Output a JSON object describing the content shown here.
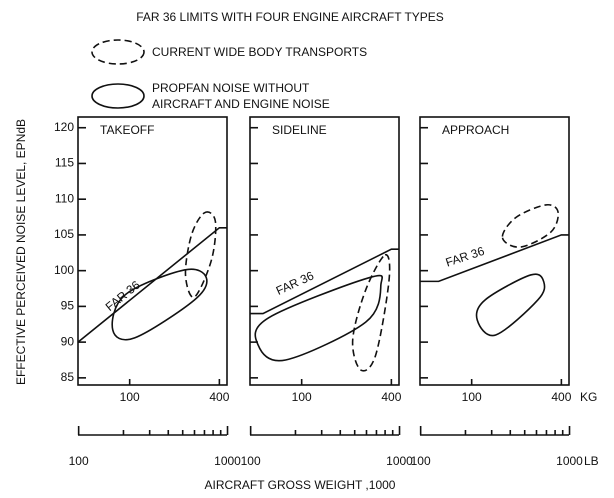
{
  "chart_data": {
    "type": "line",
    "title": "FAR 36 LIMITS WITH FOUR ENGINE AIRCRAFT TYPES",
    "ylabel": "EFFECTIVE PERCEIVED NOISE LEVEL, EPNdB",
    "xlabel": "AIRCRAFT GROSS WEIGHT ,1000",
    "x_unit": "KG",
    "x2_unit": "LB",
    "xscale": "log",
    "xlim": [
      45,
      450
    ],
    "xticks": [
      100,
      400
    ],
    "x2lim": [
      99,
      992
    ],
    "x2ticks": [
      100,
      1000
    ],
    "x2minorticks": [
      200,
      300,
      400,
      500,
      600,
      700,
      800,
      900
    ],
    "ylim": [
      84,
      121.5
    ],
    "yticks": [
      85,
      90,
      95,
      100,
      105,
      110,
      115,
      120
    ],
    "legend": [
      {
        "name": "CURRENT WIDE BODY TRANSPORTS",
        "style": "dashed"
      },
      {
        "name": "PROPFAN NOISE WITHOUT AIRCRAFT AND ENGINE NOISE",
        "style": "solid"
      }
    ],
    "panels": [
      {
        "title": "TAKEOFF",
        "series": [
          {
            "name": "FAR 36",
            "x": [
              45,
              400,
              450
            ],
            "values": [
              90,
              106,
              106
            ]
          }
        ],
        "regions": [
          {
            "style": "solid",
            "x": [
              77,
              108,
              272,
              327,
              233,
              93
            ],
            "y": [
              91.7,
              90.6,
              95.9,
              99,
              100.1,
              96.6
            ]
          },
          {
            "style": "dashed",
            "x": [
              318,
              376,
              354,
              272,
              237,
              260
            ],
            "y": [
              108.1,
              106.9,
              101.5,
              96.3,
              99.4,
              105
            ]
          }
        ]
      },
      {
        "title": "SIDELINE",
        "series": [
          {
            "name": "FAR 36",
            "x": [
              45,
              55,
              400,
              450
            ],
            "values": [
              94,
              94,
              103,
              103
            ]
          }
        ],
        "regions": [
          {
            "style": "solid",
            "x": [
              51,
              78,
              269,
              340,
              282,
              60
            ],
            "y": [
              89.6,
              87.5,
              92.8,
              98,
              99,
              93.4
            ]
          },
          {
            "style": "dashed",
            "x": [
              363,
              386,
              314,
              249,
              220,
              269
            ],
            "y": [
              102.2,
              98.7,
              88.2,
              86.1,
              90.3,
              97.3
            ]
          }
        ]
      },
      {
        "title": "APPROACH",
        "series": [
          {
            "name": "FAR 36",
            "x": [
              45,
              60,
              400,
              450
            ],
            "values": [
              98.5,
              98.5,
              105,
              105
            ]
          }
        ],
        "regions": [
          {
            "style": "solid",
            "x": [
              109,
              145,
              278,
              305,
              249,
              123
            ],
            "y": [
              93.1,
              91,
              95.9,
              98.4,
              99.4,
              95.9
            ]
          },
          {
            "style": "dashed",
            "x": [
              161,
              213,
              340,
              380,
              314,
              197
            ],
            "y": [
              104.6,
              103.3,
              105.4,
              108.2,
              109.2,
              107.4
            ]
          }
        ]
      }
    ]
  }
}
